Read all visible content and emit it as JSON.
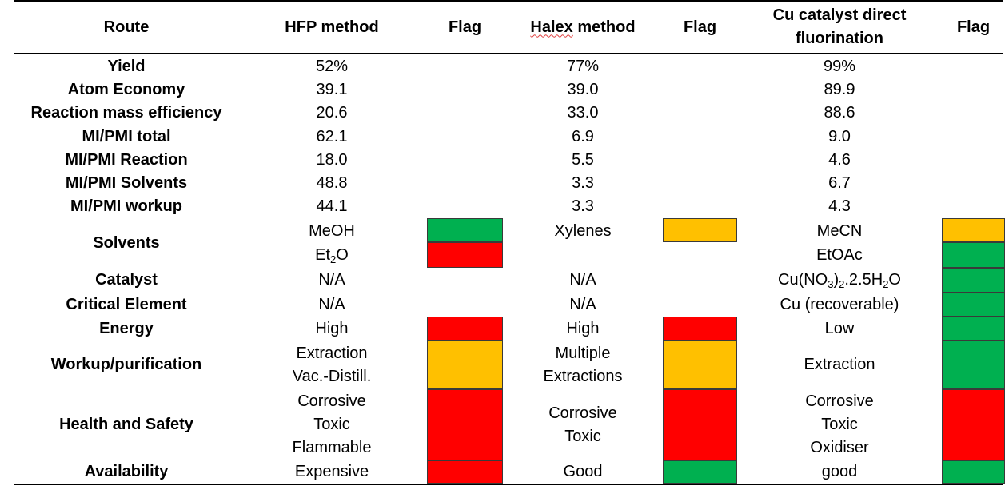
{
  "colors": {
    "green": "#00b050",
    "red": "#ff0000",
    "amber": "#ffc000"
  },
  "header": {
    "route": "Route",
    "hfp": "HFP method",
    "flag1": "Flag",
    "halex_word": "Halex",
    "halex_rest": " method",
    "flag2": "Flag",
    "cu_line1": "Cu catalyst direct",
    "cu_line2": "fluorination",
    "flag3": "Flag"
  },
  "metrics": [
    {
      "label": "Yield",
      "hfp": "52%",
      "halex": "77%",
      "cu": "99%"
    },
    {
      "label": "Atom Economy",
      "hfp": "39.1",
      "halex": "39.0",
      "cu": "89.9"
    },
    {
      "label": "Reaction mass efficiency",
      "hfp": "20.6",
      "halex": "33.0",
      "cu": "88.6"
    },
    {
      "label": "MI/PMI total",
      "hfp": "62.1",
      "halex": "6.9",
      "cu": "9.0"
    },
    {
      "label": "MI/PMI Reaction",
      "hfp": "18.0",
      "halex": "5.5",
      "cu": "4.6"
    },
    {
      "label": "MI/PMI Solvents",
      "hfp": "48.8",
      "halex": "3.3",
      "cu": "6.7"
    },
    {
      "label": "MI/PMI workup",
      "hfp": "44.1",
      "halex": "3.3",
      "cu": "4.3"
    }
  ],
  "solvents": {
    "label": "Solvents",
    "hfp_1": "MeOH",
    "hfp_1_flag": "green",
    "hfp_2_pre": "Et",
    "hfp_2_sub": "2",
    "hfp_2_post": "O",
    "hfp_2_flag": "red",
    "halex_1": "Xylenes",
    "halex_1_flag": "amber",
    "cu_1": "MeCN",
    "cu_1_flag": "amber",
    "cu_2": "EtOAc",
    "cu_2_flag": "green"
  },
  "catalyst": {
    "label": "Catalyst",
    "hfp": "N/A",
    "halex": "N/A",
    "cu_pre": "Cu(NO",
    "cu_sub": "3",
    "cu_post": ")",
    "cu_sub2": "2",
    "cu_tail": ".2.5H",
    "cu_sub3": "2",
    "cu_end": "O",
    "cu_flag": "green"
  },
  "critical": {
    "label": "Critical Element",
    "hfp": "N/A",
    "halex": "N/A",
    "cu": "Cu (recoverable)",
    "cu_flag": "green"
  },
  "energy": {
    "label": "Energy",
    "hfp": "High",
    "hfp_flag": "red",
    "halex": "High",
    "halex_flag": "red",
    "cu": "Low",
    "cu_flag": "green"
  },
  "workup": {
    "label": "Workup/purification",
    "hfp_1": "Extraction",
    "hfp_2": "Vac.-Distill.",
    "hfp_flag": "amber",
    "halex_1": "Multiple",
    "halex_2": "Extractions",
    "halex_flag": "amber",
    "cu": "Extraction",
    "cu_flag": "green"
  },
  "health": {
    "label": "Health and Safety",
    "hfp_1": "Corrosive",
    "hfp_2": "Toxic",
    "hfp_3": "Flammable",
    "hfp_flag": "red",
    "halex_1": "Corrosive",
    "halex_2": "Toxic",
    "halex_flag": "red",
    "cu_1": "Corrosive",
    "cu_2": "Toxic",
    "cu_3": "Oxidiser",
    "cu_flag": "red"
  },
  "availability": {
    "label": "Availability",
    "hfp": "Expensive",
    "hfp_flag": "red",
    "halex": "Good",
    "halex_flag": "green",
    "cu": "good",
    "cu_flag": "green"
  }
}
